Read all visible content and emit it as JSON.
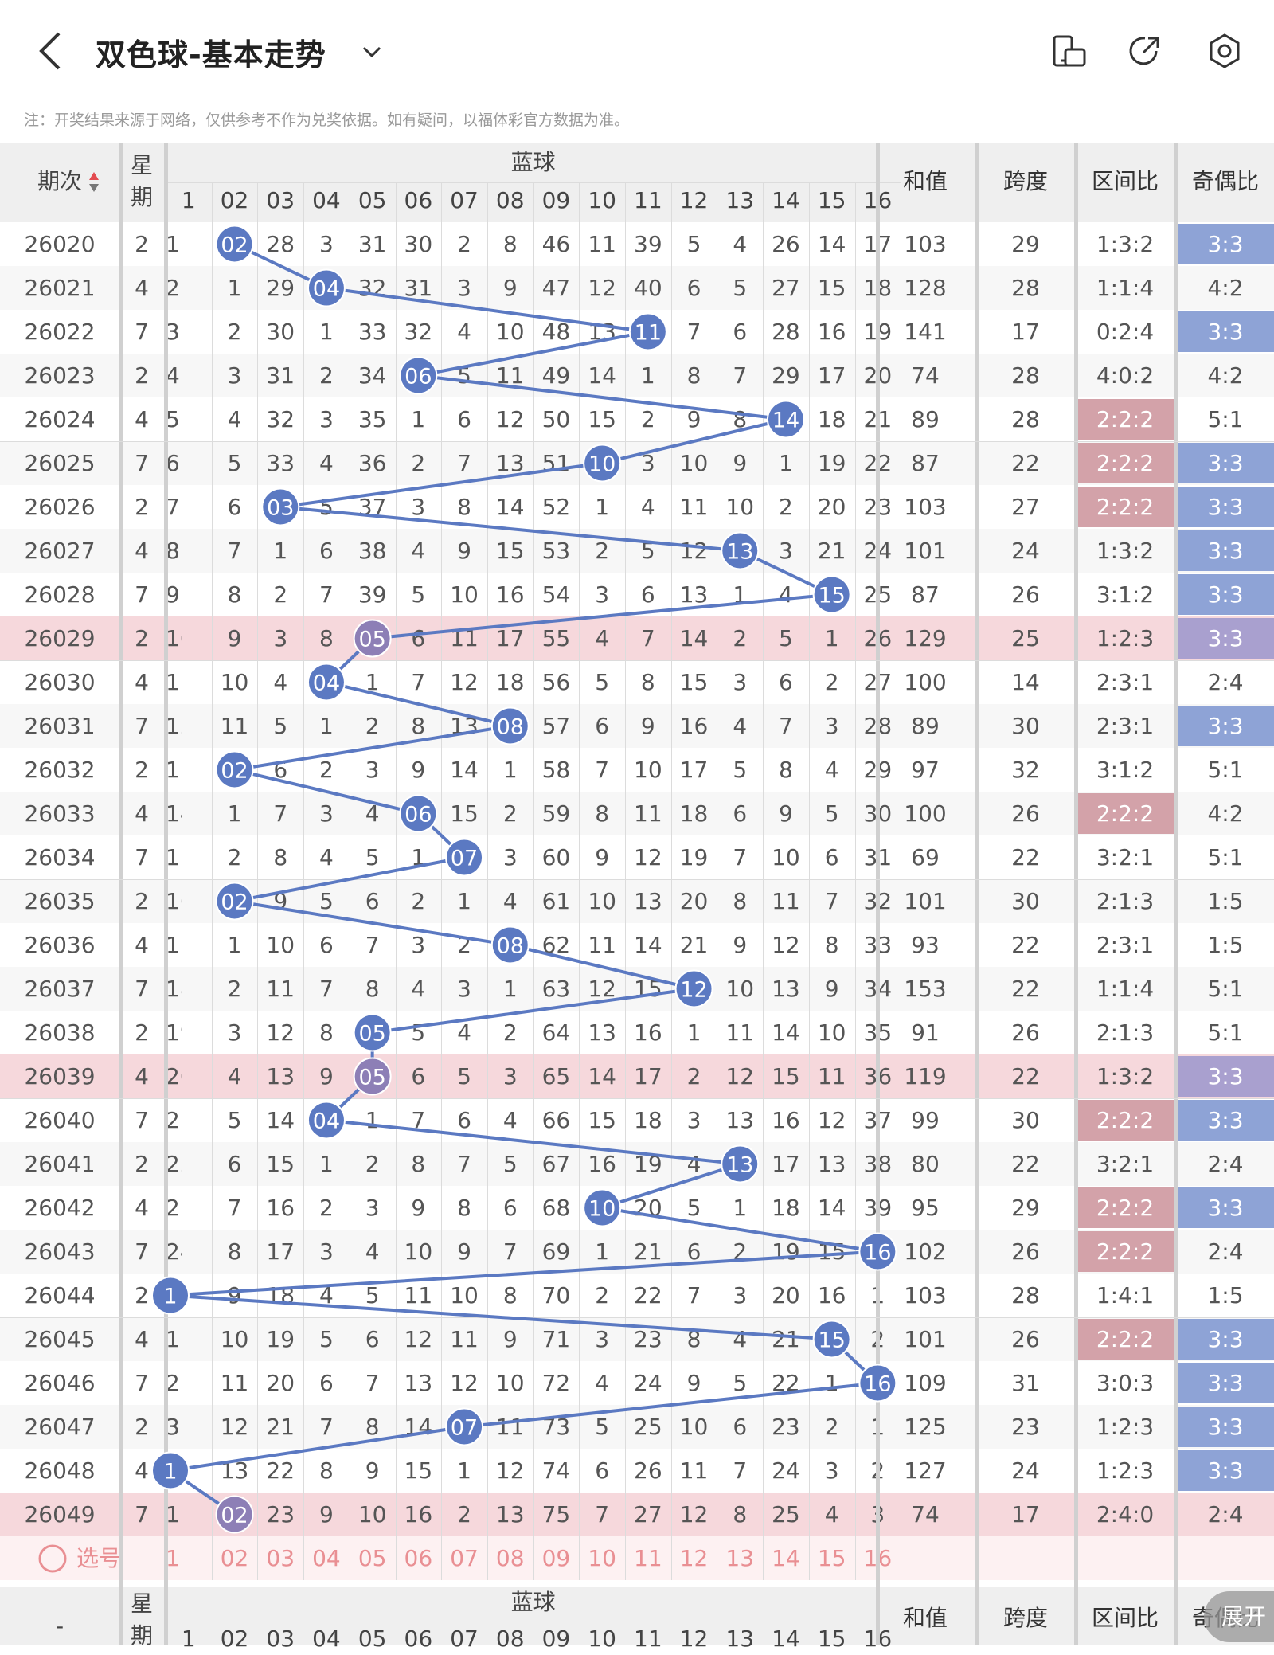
{
  "header": {
    "title": "双色球-基本走势",
    "back_icon": "back-icon",
    "dropdown_icon": "chevron-down-icon",
    "actions": [
      "phone-landscape-icon",
      "share-icon",
      "settings-icon"
    ]
  },
  "note": "注：开奖结果来源于网络，仅供参考不作为兑奖依据。如有疑问，以福体彩官方数据为准。",
  "table": {
    "col_issue": "期次",
    "col_weekday": [
      "星",
      "期"
    ],
    "group_blue": "蓝球",
    "blue_numbers": [
      "1",
      "02",
      "03",
      "04",
      "05",
      "06",
      "07",
      "08",
      "09",
      "10",
      "11",
      "12",
      "13",
      "14",
      "15",
      "16"
    ],
    "col_sum": "和值",
    "col_span": "跨度",
    "col_interval": "区间比",
    "col_oddeven": "奇偶比",
    "rows": [
      {
        "issue": "26020",
        "wd": "2",
        "hit": 2,
        "cells": [
          "1",
          "02",
          "28",
          "3",
          "31",
          "30",
          "2",
          "8",
          "46",
          "11",
          "39",
          "5",
          "4",
          "26",
          "14",
          "17"
        ],
        "sum": "103",
        "span": "29",
        "zone": "1:3:2",
        "oe": "3:3"
      },
      {
        "issue": "26021",
        "wd": "4",
        "hit": 4,
        "cells": [
          "2",
          "1",
          "29",
          "04",
          "32",
          "31",
          "3",
          "9",
          "47",
          "12",
          "40",
          "6",
          "5",
          "27",
          "15",
          "18"
        ],
        "sum": "128",
        "span": "28",
        "zone": "1:1:4",
        "oe": "4:2"
      },
      {
        "issue": "26022",
        "wd": "7",
        "hit": 11,
        "cells": [
          "3",
          "2",
          "30",
          "1",
          "33",
          "32",
          "4",
          "10",
          "48",
          "13",
          "11",
          "7",
          "6",
          "28",
          "16",
          "19"
        ],
        "sum": "141",
        "span": "17",
        "zone": "0:2:4",
        "oe": "3:3"
      },
      {
        "issue": "26023",
        "wd": "2",
        "hit": 6,
        "cells": [
          "4",
          "3",
          "31",
          "2",
          "34",
          "06",
          "5",
          "11",
          "49",
          "14",
          "1",
          "8",
          "7",
          "29",
          "17",
          "20"
        ],
        "sum": "74",
        "span": "28",
        "zone": "4:0:2",
        "oe": "4:2"
      },
      {
        "issue": "26024",
        "wd": "4",
        "hit": 14,
        "cells": [
          "5",
          "4",
          "32",
          "3",
          "35",
          "1",
          "6",
          "12",
          "50",
          "15",
          "2",
          "9",
          "8",
          "14",
          "18",
          "21"
        ],
        "sum": "89",
        "span": "28",
        "zone": "2:2:2",
        "oe": "5:1"
      },
      {
        "issue": "26025",
        "wd": "7",
        "hit": 10,
        "cells": [
          "6",
          "5",
          "33",
          "4",
          "36",
          "2",
          "7",
          "13",
          "51",
          "10",
          "3",
          "10",
          "9",
          "1",
          "19",
          "22"
        ],
        "sum": "87",
        "span": "22",
        "zone": "2:2:2",
        "oe": "3:3"
      },
      {
        "issue": "26026",
        "wd": "2",
        "hit": 3,
        "cells": [
          "7",
          "6",
          "03",
          "5",
          "37",
          "3",
          "8",
          "14",
          "52",
          "1",
          "4",
          "11",
          "10",
          "2",
          "20",
          "23"
        ],
        "sum": "103",
        "span": "27",
        "zone": "2:2:2",
        "oe": "3:3"
      },
      {
        "issue": "26027",
        "wd": "4",
        "hit": 13,
        "cells": [
          "8",
          "7",
          "1",
          "6",
          "38",
          "4",
          "9",
          "15",
          "53",
          "2",
          "5",
          "12",
          "13",
          "3",
          "21",
          "24"
        ],
        "sum": "101",
        "span": "24",
        "zone": "1:3:2",
        "oe": "3:3"
      },
      {
        "issue": "26028",
        "wd": "7",
        "hit": 15,
        "cells": [
          "9",
          "8",
          "2",
          "7",
          "39",
          "5",
          "10",
          "16",
          "54",
          "3",
          "6",
          "13",
          "1",
          "4",
          "15",
          "25"
        ],
        "sum": "87",
        "span": "26",
        "zone": "3:1:2",
        "oe": "3:3"
      },
      {
        "issue": "26029",
        "wd": "2",
        "hit": 5,
        "cells": [
          "10",
          "9",
          "3",
          "8",
          "05",
          "6",
          "11",
          "17",
          "55",
          "4",
          "7",
          "14",
          "2",
          "5",
          "1",
          "26"
        ],
        "sum": "129",
        "span": "25",
        "zone": "1:2:3",
        "oe": "3:3"
      },
      {
        "issue": "26030",
        "wd": "4",
        "hit": 4,
        "cells": [
          "11",
          "10",
          "4",
          "04",
          "1",
          "7",
          "12",
          "18",
          "56",
          "5",
          "8",
          "15",
          "3",
          "6",
          "2",
          "27"
        ],
        "sum": "100",
        "span": "14",
        "zone": "2:3:1",
        "oe": "2:4"
      },
      {
        "issue": "26031",
        "wd": "7",
        "hit": 8,
        "cells": [
          "12",
          "11",
          "5",
          "1",
          "2",
          "8",
          "13",
          "08",
          "57",
          "6",
          "9",
          "16",
          "4",
          "7",
          "3",
          "28"
        ],
        "sum": "89",
        "span": "30",
        "zone": "2:3:1",
        "oe": "3:3"
      },
      {
        "issue": "26032",
        "wd": "2",
        "hit": 2,
        "cells": [
          "13",
          "02",
          "6",
          "2",
          "3",
          "9",
          "14",
          "1",
          "58",
          "7",
          "10",
          "17",
          "5",
          "8",
          "4",
          "29"
        ],
        "sum": "97",
        "span": "32",
        "zone": "3:1:2",
        "oe": "5:1"
      },
      {
        "issue": "26033",
        "wd": "4",
        "hit": 6,
        "cells": [
          "14",
          "1",
          "7",
          "3",
          "4",
          "06",
          "15",
          "2",
          "59",
          "8",
          "11",
          "18",
          "6",
          "9",
          "5",
          "30"
        ],
        "sum": "100",
        "span": "26",
        "zone": "2:2:2",
        "oe": "4:2"
      },
      {
        "issue": "26034",
        "wd": "7",
        "hit": 7,
        "cells": [
          "15",
          "2",
          "8",
          "4",
          "5",
          "1",
          "07",
          "3",
          "60",
          "9",
          "12",
          "19",
          "7",
          "10",
          "6",
          "31"
        ],
        "sum": "69",
        "span": "22",
        "zone": "3:2:1",
        "oe": "5:1"
      },
      {
        "issue": "26035",
        "wd": "2",
        "hit": 2,
        "cells": [
          "16",
          "02",
          "9",
          "5",
          "6",
          "2",
          "1",
          "4",
          "61",
          "10",
          "13",
          "20",
          "8",
          "11",
          "7",
          "32"
        ],
        "sum": "101",
        "span": "30",
        "zone": "2:1:3",
        "oe": "1:5"
      },
      {
        "issue": "26036",
        "wd": "4",
        "hit": 8,
        "cells": [
          "17",
          "1",
          "10",
          "6",
          "7",
          "3",
          "2",
          "08",
          "62",
          "11",
          "14",
          "21",
          "9",
          "12",
          "8",
          "33"
        ],
        "sum": "93",
        "span": "22",
        "zone": "2:3:1",
        "oe": "1:5"
      },
      {
        "issue": "26037",
        "wd": "7",
        "hit": 12,
        "cells": [
          "18",
          "2",
          "11",
          "7",
          "8",
          "4",
          "3",
          "1",
          "63",
          "12",
          "15",
          "12",
          "10",
          "13",
          "9",
          "34"
        ],
        "sum": "153",
        "span": "22",
        "zone": "1:1:4",
        "oe": "5:1"
      },
      {
        "issue": "26038",
        "wd": "2",
        "hit": 5,
        "cells": [
          "19",
          "3",
          "12",
          "8",
          "05",
          "5",
          "4",
          "2",
          "64",
          "13",
          "16",
          "1",
          "11",
          "14",
          "10",
          "35"
        ],
        "sum": "91",
        "span": "26",
        "zone": "2:1:3",
        "oe": "5:1"
      },
      {
        "issue": "26039",
        "wd": "4",
        "hit": 5,
        "cells": [
          "20",
          "4",
          "13",
          "9",
          "05",
          "6",
          "5",
          "3",
          "65",
          "14",
          "17",
          "2",
          "12",
          "15",
          "11",
          "36"
        ],
        "sum": "119",
        "span": "22",
        "zone": "1:3:2",
        "oe": "3:3"
      },
      {
        "issue": "26040",
        "wd": "7",
        "hit": 4,
        "cells": [
          "21",
          "5",
          "14",
          "04",
          "1",
          "7",
          "6",
          "4",
          "66",
          "15",
          "18",
          "3",
          "13",
          "16",
          "12",
          "37"
        ],
        "sum": "99",
        "span": "30",
        "zone": "2:2:2",
        "oe": "3:3"
      },
      {
        "issue": "26041",
        "wd": "2",
        "hit": 13,
        "cells": [
          "22",
          "6",
          "15",
          "1",
          "2",
          "8",
          "7",
          "5",
          "67",
          "16",
          "19",
          "4",
          "13",
          "17",
          "13",
          "38"
        ],
        "sum": "80",
        "span": "22",
        "zone": "3:2:1",
        "oe": "2:4"
      },
      {
        "issue": "26042",
        "wd": "4",
        "hit": 10,
        "cells": [
          "23",
          "7",
          "16",
          "2",
          "3",
          "9",
          "8",
          "6",
          "68",
          "10",
          "20",
          "5",
          "1",
          "18",
          "14",
          "39"
        ],
        "sum": "95",
        "span": "29",
        "zone": "2:2:2",
        "oe": "3:3"
      },
      {
        "issue": "26043",
        "wd": "7",
        "hit": 16,
        "cells": [
          "24",
          "8",
          "17",
          "3",
          "4",
          "10",
          "9",
          "7",
          "69",
          "1",
          "21",
          "6",
          "2",
          "19",
          "15",
          "16"
        ],
        "sum": "102",
        "span": "26",
        "zone": "2:2:2",
        "oe": "2:4"
      },
      {
        "issue": "26044",
        "wd": "2",
        "hit": 1,
        "cells": [
          "1",
          "9",
          "18",
          "4",
          "5",
          "11",
          "10",
          "8",
          "70",
          "2",
          "22",
          "7",
          "3",
          "20",
          "16",
          "1"
        ],
        "sum": "103",
        "span": "28",
        "zone": "1:4:1",
        "oe": "1:5"
      },
      {
        "issue": "26045",
        "wd": "4",
        "hit": 15,
        "cells": [
          "1",
          "10",
          "19",
          "5",
          "6",
          "12",
          "11",
          "9",
          "71",
          "3",
          "23",
          "8",
          "4",
          "21",
          "15",
          "2"
        ],
        "sum": "101",
        "span": "26",
        "zone": "2:2:2",
        "oe": "3:3"
      },
      {
        "issue": "26046",
        "wd": "7",
        "hit": 16,
        "cells": [
          "2",
          "11",
          "20",
          "6",
          "7",
          "13",
          "12",
          "10",
          "72",
          "4",
          "24",
          "9",
          "5",
          "22",
          "1",
          "16"
        ],
        "sum": "109",
        "span": "31",
        "zone": "3:0:3",
        "oe": "3:3"
      },
      {
        "issue": "26047",
        "wd": "2",
        "hit": 7,
        "cells": [
          "3",
          "12",
          "21",
          "7",
          "8",
          "14",
          "07",
          "11",
          "73",
          "5",
          "25",
          "10",
          "6",
          "23",
          "2",
          "1"
        ],
        "sum": "125",
        "span": "23",
        "zone": "1:2:3",
        "oe": "3:3"
      },
      {
        "issue": "26048",
        "wd": "4",
        "hit": 1,
        "cells": [
          "1",
          "13",
          "22",
          "8",
          "9",
          "15",
          "1",
          "12",
          "74",
          "6",
          "26",
          "11",
          "7",
          "24",
          "3",
          "2"
        ],
        "sum": "127",
        "span": "24",
        "zone": "1:2:3",
        "oe": "3:3"
      },
      {
        "issue": "26049",
        "wd": "7",
        "hit": 2,
        "cells": [
          "1",
          "02",
          "23",
          "9",
          "10",
          "16",
          "2",
          "13",
          "75",
          "7",
          "27",
          "12",
          "8",
          "25",
          "4",
          "3"
        ],
        "sum": "74",
        "span": "17",
        "zone": "2:4:0",
        "oe": "2:4"
      }
    ],
    "select_label": "选号",
    "footer_issue": "-",
    "expand_label": "展开"
  },
  "colors": {
    "blue_ball": "#5b79c2",
    "purple_ball": "#8d7fb6",
    "line": "#5b79c2",
    "pink_row": "#f6d8dc",
    "red_tag": "#d3a2a9",
    "blue_tag": "#8ea3d6",
    "purple_tag": "#a9a0cf",
    "select_text": "#e98f93"
  }
}
